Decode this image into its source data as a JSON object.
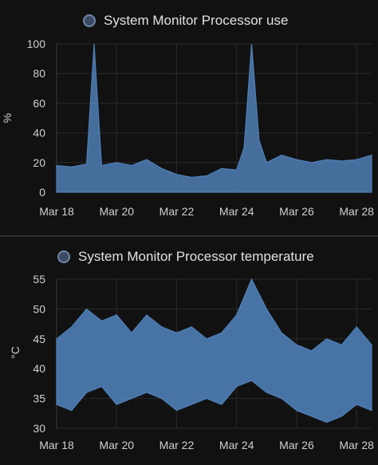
{
  "chart_data": [
    {
      "type": "area",
      "title": "System Monitor Processor use",
      "ylabel": "%",
      "xlabel": "",
      "x_ticks": [
        "Mar 18",
        "Mar 20",
        "Mar 22",
        "Mar 24",
        "Mar 26",
        "Mar 28"
      ],
      "xlim": [
        "2024-03-18",
        "2024-03-28T12:00"
      ],
      "ylim": [
        0,
        100
      ],
      "y_ticks": [
        0,
        20,
        40,
        60,
        80,
        100
      ],
      "grid": true,
      "legend_position": "top-center",
      "color": "#4f7fb6",
      "series": [
        {
          "name": "System Monitor Processor use",
          "x": [
            "2024-03-18",
            "2024-03-18T12:00",
            "2024-03-19",
            "2024-03-19T06:00",
            "2024-03-19T12:00",
            "2024-03-20",
            "2024-03-20T12:00",
            "2024-03-21",
            "2024-03-21T12:00",
            "2024-03-22",
            "2024-03-22T12:00",
            "2024-03-23",
            "2024-03-23T12:00",
            "2024-03-24",
            "2024-03-24T06:00",
            "2024-03-24T12:00",
            "2024-03-24T18:00",
            "2024-03-25",
            "2024-03-25T12:00",
            "2024-03-26",
            "2024-03-26T12:00",
            "2024-03-27",
            "2024-03-27T12:00",
            "2024-03-28",
            "2024-03-28T12:00"
          ],
          "y": [
            18,
            17,
            19,
            100,
            18,
            20,
            18,
            22,
            16,
            12,
            10,
            11,
            16,
            15,
            30,
            100,
            35,
            20,
            25,
            22,
            20,
            22,
            21,
            22,
            25
          ]
        }
      ]
    },
    {
      "type": "area",
      "title": "System Monitor Processor temperature",
      "ylabel": "°C",
      "xlabel": "",
      "x_ticks": [
        "Mar 18",
        "Mar 20",
        "Mar 22",
        "Mar 24",
        "Mar 26",
        "Mar 28"
      ],
      "xlim": [
        "2024-03-18",
        "2024-03-28T12:00"
      ],
      "ylim": [
        30,
        55
      ],
      "y_ticks": [
        30,
        35,
        40,
        45,
        50,
        55
      ],
      "grid": true,
      "legend_position": "top-center",
      "color": "#4f7fb6",
      "series": [
        {
          "name": "System Monitor Processor temperature",
          "x": [
            "2024-03-18",
            "2024-03-18T12:00",
            "2024-03-19",
            "2024-03-19T12:00",
            "2024-03-20",
            "2024-03-20T12:00",
            "2024-03-21",
            "2024-03-21T12:00",
            "2024-03-22",
            "2024-03-22T12:00",
            "2024-03-23",
            "2024-03-23T12:00",
            "2024-03-24",
            "2024-03-24T12:00",
            "2024-03-25",
            "2024-03-25T12:00",
            "2024-03-26",
            "2024-03-26T12:00",
            "2024-03-27",
            "2024-03-27T12:00",
            "2024-03-28",
            "2024-03-28T12:00"
          ],
          "max": [
            45,
            47,
            50,
            48,
            49,
            46,
            49,
            47,
            46,
            47,
            45,
            46,
            49,
            55,
            50,
            46,
            44,
            43,
            45,
            44,
            47,
            44
          ],
          "min": [
            34,
            33,
            36,
            37,
            34,
            35,
            36,
            35,
            33,
            34,
            35,
            34,
            37,
            38,
            36,
            35,
            33,
            32,
            31,
            32,
            34,
            33
          ]
        }
      ]
    }
  ]
}
